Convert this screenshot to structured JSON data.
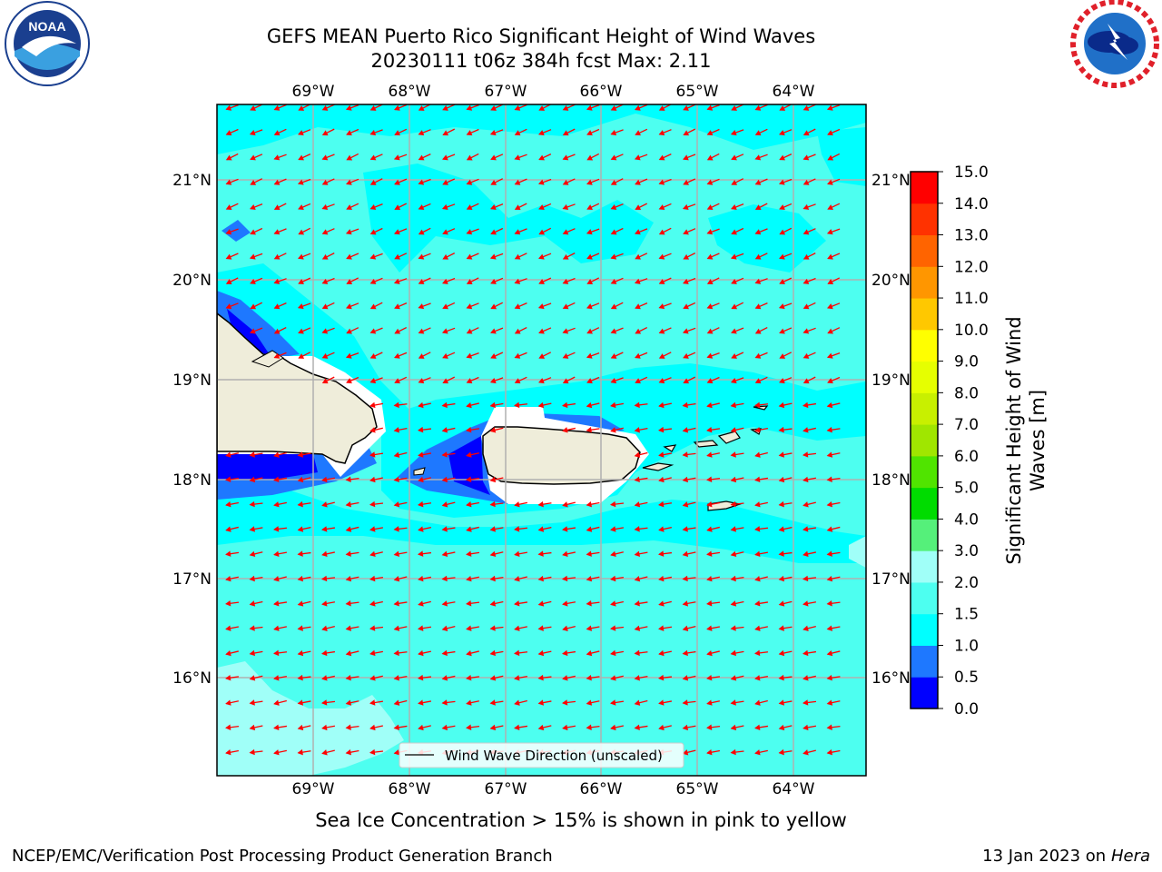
{
  "title_line1": "GEFS MEAN Puerto Rico Significant Height of Wind Waves",
  "title_line2": "20230111 t06z 384h fcst   Max: 2.11",
  "lon_labels": [
    "69°W",
    "68°W",
    "67°W",
    "66°W",
    "65°W",
    "64°W"
  ],
  "lat_labels": [
    "21°N",
    "20°N",
    "19°N",
    "18°N",
    "17°N",
    "16°N"
  ],
  "colorbar": {
    "label_line1": "Significant Height of Wind",
    "label_line2": "Waves [m]",
    "ticks": [
      "0.0",
      "0.5",
      "1.0",
      "1.5",
      "2.0",
      "3.0",
      "4.0",
      "5.0",
      "6.0",
      "7.0",
      "8.0",
      "9.0",
      "10.0",
      "11.0",
      "12.0",
      "13.0",
      "14.0",
      "15.0"
    ],
    "colors": [
      "#0000ff",
      "#1e78ff",
      "#00ffff",
      "#4dfff0",
      "#a0fff8",
      "#55f07a",
      "#00dc00",
      "#50e400",
      "#a0e600",
      "#c8f000",
      "#e6ff00",
      "#ffff00",
      "#ffc800",
      "#ff9600",
      "#ff6400",
      "#ff3200",
      "#ff0000"
    ]
  },
  "legend_label": "Wind Wave Direction (unscaled)",
  "sea_ice_note": "Sea Ice Concentration > 15% is shown in pink to yellow",
  "footer_left": "NCEP/EMC/Verification Post Processing Product Generation Branch",
  "footer_date": "13 Jan 2023 on",
  "footer_host": "Hera",
  "logo_left": "NOAA",
  "colors": {
    "ocean_base": "#4dfff0",
    "ocean_light": "#a0fff8",
    "ocean_cyan": "#00ffff",
    "wave_mid": "#1e78ff",
    "wave_low": "#0000ff",
    "land": "#efedda",
    "arrow": "#ff0000",
    "grid": "#b0b0b0"
  }
}
